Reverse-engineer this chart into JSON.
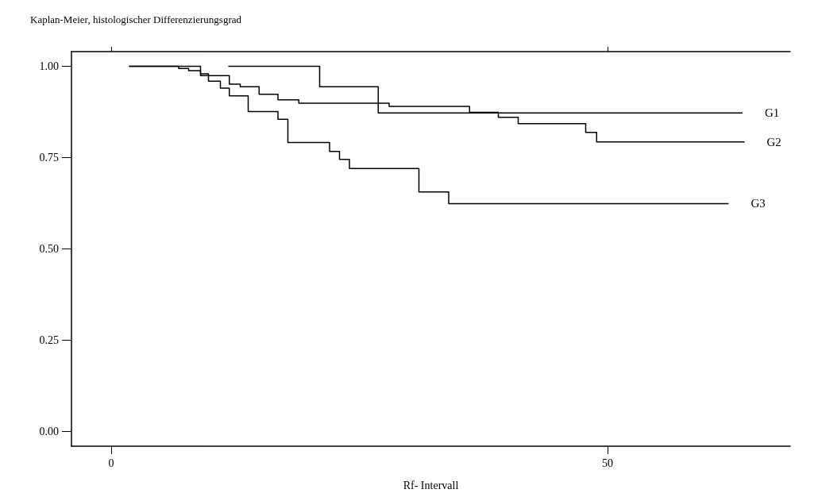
{
  "chart_data": {
    "type": "step",
    "title": "Kaplan-Meier, histologischer Differenzierungsgrad",
    "xlabel": "Rf- Intervall",
    "xlim": [
      -4,
      68.4
    ],
    "xticks": [
      0,
      50
    ],
    "ylim": [
      -0.04,
      1.04
    ],
    "yticks": [
      {
        "value": 0,
        "label": "0.00"
      },
      {
        "value": 0.25,
        "label": "0.25"
      },
      {
        "value": 0.5,
        "label": "0.50"
      },
      {
        "value": 0.75,
        "label": "0.75"
      },
      {
        "value": 1,
        "label": "1.00"
      }
    ],
    "grid": false,
    "legend": false,
    "marker": "none",
    "line_style": "solid",
    "series": [
      {
        "name": "G1",
        "color": "#000000",
        "x": [
          11.8,
          21.0,
          26.9,
          63.6
        ],
        "values": [
          1.0,
          0.944,
          0.872,
          0.872
        ]
      },
      {
        "name": "G2",
        "color": "#000000",
        "x": [
          1.8,
          9.0,
          11.9,
          13.0,
          14.9,
          16.8,
          18.9,
          28.0,
          36.1,
          39.0,
          41.0,
          47.8,
          48.9,
          63.8
        ],
        "values": [
          1.0,
          0.974,
          0.951,
          0.944,
          0.923,
          0.908,
          0.899,
          0.89,
          0.874,
          0.86,
          0.843,
          0.819,
          0.793,
          0.793
        ]
      },
      {
        "name": "G3",
        "color": "#000000",
        "x": [
          1.8,
          6.8,
          7.8,
          9.0,
          9.8,
          11.0,
          11.9,
          13.8,
          16.8,
          17.8,
          22.0,
          23.0,
          24.0,
          31.0,
          34.0,
          62.2
        ],
        "values": [
          1.0,
          0.994,
          0.988,
          0.979,
          0.959,
          0.94,
          0.919,
          0.876,
          0.855,
          0.791,
          0.767,
          0.745,
          0.72,
          0.656,
          0.624,
          0.624
        ]
      }
    ]
  }
}
